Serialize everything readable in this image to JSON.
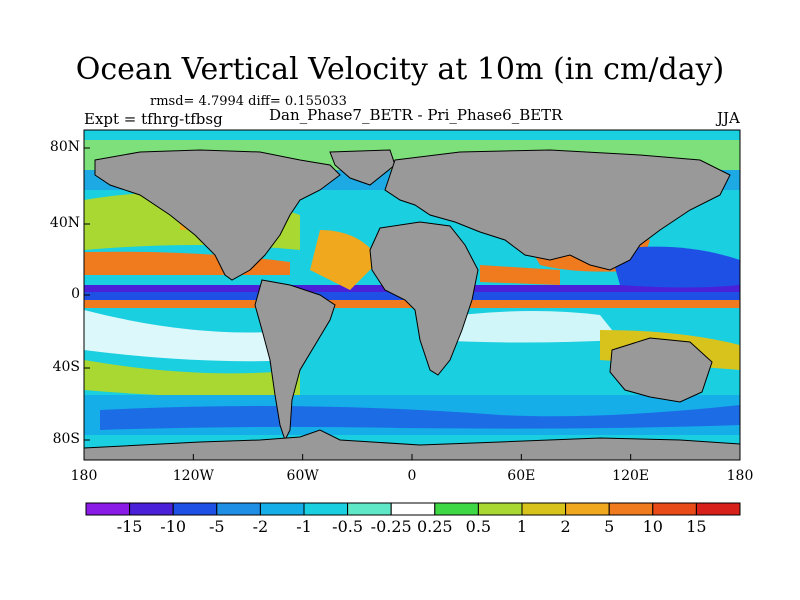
{
  "title": "Ocean Vertical Velocity at 10m (in cm/day)",
  "stats": "rmsd= 4.7994 diff= 0.155033",
  "expt_label": "Expt = tfhrg-tfbsg",
  "experiment_name": "Dan_Phase7_BETR - Pri_Phase6_BETR",
  "season": "JJA",
  "map": {
    "lat_ticks": [
      "80N",
      "40N",
      "0",
      "40S",
      "80S"
    ],
    "lon_ticks": [
      "180",
      "120W",
      "60W",
      "0",
      "60E",
      "120E",
      "180"
    ],
    "land_color": "#999999"
  },
  "colorbar": {
    "labels": [
      "-15",
      "-10",
      "-5",
      "-2",
      "-1",
      "-0.5",
      "-0.25",
      "0.25",
      "0.5",
      "1",
      "2",
      "5",
      "10",
      "15"
    ],
    "colors": [
      "#8a1ae6",
      "#4a20d8",
      "#1f50e6",
      "#1f8fe6",
      "#15aee8",
      "#19cfe0",
      "#5fe8c8",
      "#ffffff",
      "#3fd845",
      "#a8d831",
      "#d8c31d",
      "#f0a81f",
      "#f07a1e",
      "#e84a18",
      "#d8201a"
    ]
  }
}
